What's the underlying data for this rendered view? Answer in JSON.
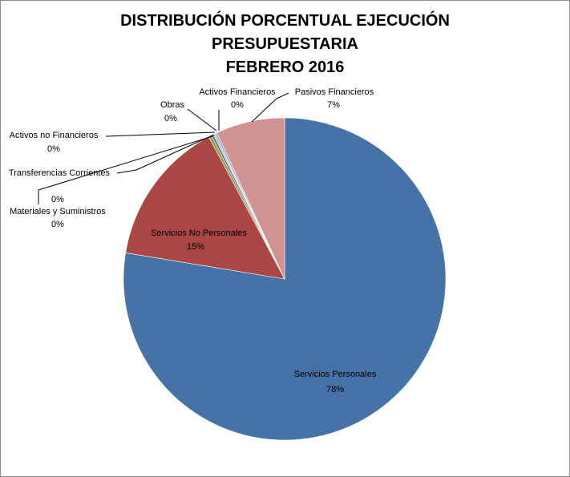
{
  "chart_data": {
    "type": "pie",
    "title_lines": [
      "DISTRIBUCIÓN PORCENTUAL EJECUCIÓN",
      "PRESUPUESTARIA",
      "FEBRERO 2016"
    ],
    "start_angle_deg": 0,
    "direction": "clockwise",
    "slices": [
      {
        "name": "Servicios Personales",
        "value": 77.6,
        "label_pct": "78%",
        "color": "#4572A7"
      },
      {
        "name": "Servicios No Personales",
        "value": 14.6,
        "label_pct": "15%",
        "color": "#AA4643"
      },
      {
        "name": "Materiales y Suministros",
        "value": 0.3,
        "label_pct": "0%",
        "color": "#89A54E"
      },
      {
        "name": "Transferencias Corrientes",
        "value": 0.2,
        "label_pct": "0%",
        "color": "#71588F"
      },
      {
        "name": "Activos no Financieros",
        "value": 0.1,
        "label_pct": "0%",
        "color": "#4198AF"
      },
      {
        "name": "Obras",
        "value": 0.1,
        "label_pct": "0%",
        "color": "#DB843D"
      },
      {
        "name": "Activos Financieros",
        "value": 0.2,
        "label_pct": "0%",
        "color": "#93A9CF"
      },
      {
        "name": "Pasivos Financieros",
        "value": 6.9,
        "label_pct": "7%",
        "color": "#D19392"
      }
    ],
    "labels": {
      "servicios_personales": {
        "name": "Servicios Personales",
        "pct": "78%"
      },
      "servicios_no_personales": {
        "name": "Servicios No Personales",
        "pct": "15%"
      },
      "materiales": {
        "name": "Materiales y Suministros",
        "pct": "0%"
      },
      "transferencias": {
        "name": "Transferencias Corrientes",
        "pct": "0%"
      },
      "activos_no_fin": {
        "name": "Activos no Financieros",
        "pct": "0%"
      },
      "obras": {
        "name": "Obras",
        "pct": "0%"
      },
      "activos_fin": {
        "name": "Activos Financieros",
        "pct": "0%"
      },
      "pasivos_fin": {
        "name": "Pasivos Financieros",
        "pct": "7%"
      }
    }
  }
}
